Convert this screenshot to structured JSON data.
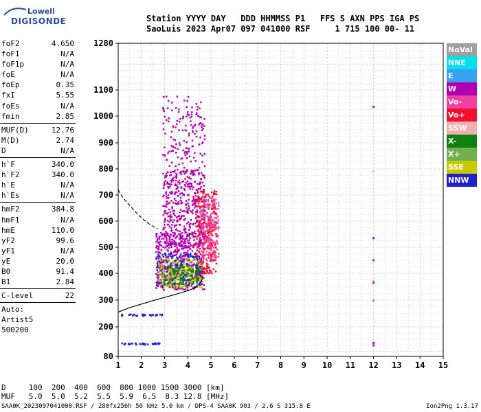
{
  "logo": {
    "line1": "Lowell",
    "line2": "DIGISONDE"
  },
  "header": {
    "row1": "Station YYYY DAY   DDD HHMMSS P1   FFS S AXN PPS IGA PS",
    "row2": "SaoLuis 2023 Apr07 097 041000 RSF     1 715 100 00- 11"
  },
  "params": [
    {
      "name": "foF2",
      "value": "4.650"
    },
    {
      "name": "foF1",
      "value": "N/A"
    },
    {
      "name": "foF1p",
      "value": "N/A"
    },
    {
      "name": "foE",
      "value": "N/A"
    },
    {
      "name": "foEp",
      "value": "0.35"
    },
    {
      "name": "fxI",
      "value": "5.55"
    },
    {
      "name": "foEs",
      "value": "N/A"
    },
    {
      "name": "fmin",
      "value": "2.85"
    },
    {
      "name": "MUF(D)",
      "value": "12.76"
    },
    {
      "name": "M(D)",
      "value": "2.74"
    },
    {
      "name": "D",
      "value": "N/A"
    },
    {
      "name": "h`F",
      "value": "340.0"
    },
    {
      "name": "h`F2",
      "value": "340.0"
    },
    {
      "name": "h`E",
      "value": "N/A"
    },
    {
      "name": "h`Es",
      "value": "N/A"
    },
    {
      "name": "hmF2",
      "value": "384.8"
    },
    {
      "name": "hmF1",
      "value": "N/A"
    },
    {
      "name": "hmE",
      "value": "110.0"
    },
    {
      "name": "yF2",
      "value": "99.6"
    },
    {
      "name": "yF1",
      "value": "N/A"
    },
    {
      "name": "yE",
      "value": "20.0"
    },
    {
      "name": "B0",
      "value": "91.4"
    },
    {
      "name": "B1",
      "value": "2.84"
    },
    {
      "name": "C-level",
      "value": "22"
    }
  ],
  "auto": {
    "l1": "Auto:",
    "l2": "Artist5",
    "l3": "500200"
  },
  "legend": [
    {
      "label": "NoVal",
      "color": "#a0a0a0"
    },
    {
      "label": "NNE",
      "color": "#00e0f0"
    },
    {
      "label": "E",
      "color": "#3aa0f0"
    },
    {
      "label": "W",
      "color": "#b000b0"
    },
    {
      "label": "Vo-",
      "color": "#f040a0"
    },
    {
      "label": "Vo+",
      "color": "#f01030"
    },
    {
      "label": "SSW",
      "color": "#f0b0b0"
    },
    {
      "label": "X-",
      "color": "#108010"
    },
    {
      "label": "X+",
      "color": "#70b050"
    },
    {
      "label": "SSE",
      "color": "#c8c800"
    },
    {
      "label": "NNW",
      "color": "#2020d0"
    }
  ],
  "footer": {
    "row1": "D     100  200  400  600  800 1000 1500 3000 [km]",
    "row2": "MUF   5.0  5.0  5.2  5.5  5.9  6.5  8.3 12.8 [MHz]",
    "bottom": "SAA0K_2023097041000.RSF / 280fx256h 50 kHz 5.0 km / DPS-4 SAA0K 903 / 2.6 S 315.8 E",
    "version": "Ion2Png 1.3.17"
  },
  "chart_data": {
    "type": "scatter",
    "xlim": [
      1,
      15
    ],
    "ylim": [
      80,
      1280
    ],
    "x_ticks": [
      1,
      2,
      3,
      4,
      5,
      6,
      7,
      8,
      9,
      10,
      11,
      12,
      13,
      14,
      15
    ],
    "y_ticks": [
      80,
      200,
      300,
      400,
      500,
      600,
      700,
      800,
      900,
      1000,
      1100,
      1280
    ],
    "y_scale": "nonlinear",
    "grid": true,
    "legend_placement": "right",
    "trace_profile": {
      "x": [
        1.0,
        1.5,
        2.0,
        2.5,
        3.0,
        3.5,
        4.0,
        4.3,
        4.5,
        4.6,
        4.65
      ],
      "y": [
        255,
        272,
        285,
        298,
        310,
        322,
        335,
        345,
        360,
        375,
        392
      ]
    },
    "trace_dashed": {
      "x": [
        1.0,
        1.2,
        1.5,
        1.8,
        2.1,
        2.4,
        2.7
      ],
      "y": [
        720,
        690,
        660,
        630,
        605,
        585,
        570
      ]
    },
    "echo_clusters": [
      {
        "x": [
          2.9,
          4.7
        ],
        "y": [
          500,
          1080
        ],
        "color": "#b000b0"
      },
      {
        "x": [
          2.6,
          4.7
        ],
        "y": [
          340,
          560
        ],
        "color": "#b000b0"
      },
      {
        "x": [
          2.6,
          4.6
        ],
        "y": [
          350,
          480
        ],
        "color": "#2020d0"
      },
      {
        "x": [
          2.7,
          4.6
        ],
        "y": [
          350,
          460
        ],
        "color": "#c8c800"
      },
      {
        "x": [
          4.3,
          5.2
        ],
        "y": [
          400,
          720
        ],
        "color": "#f01030"
      },
      {
        "x": [
          4.5,
          5.3
        ],
        "y": [
          450,
          700
        ],
        "color": "#f040a0"
      },
      {
        "x": [
          2.9,
          4.5
        ],
        "y": [
          360,
          430
        ],
        "color": "#108010"
      },
      {
        "x": [
          1.0,
          2.9
        ],
        "y": [
          243,
          250
        ],
        "color": "#2020d0"
      },
      {
        "x": [
          1.0,
          2.8
        ],
        "y": [
          130,
          138
        ],
        "color": "#2020d0"
      }
    ],
    "isolated_points": [
      {
        "x": 12,
        "y": 1035,
        "color": "#f01030"
      },
      {
        "x": 12,
        "y": 790,
        "color": "#f0b0b0"
      },
      {
        "x": 12,
        "y": 535,
        "color": "#b000b0"
      },
      {
        "x": 12,
        "y": 450,
        "color": "#f01030"
      },
      {
        "x": 12,
        "y": 372,
        "color": "#f0b0b0"
      },
      {
        "x": 12,
        "y": 365,
        "color": "#f01030"
      },
      {
        "x": 12,
        "y": 298,
        "color": "#3aa0f0"
      },
      {
        "x": 12,
        "y": 135,
        "color": "#b000b0"
      },
      {
        "x": 12,
        "y": 125,
        "color": "#b000b0"
      }
    ]
  }
}
